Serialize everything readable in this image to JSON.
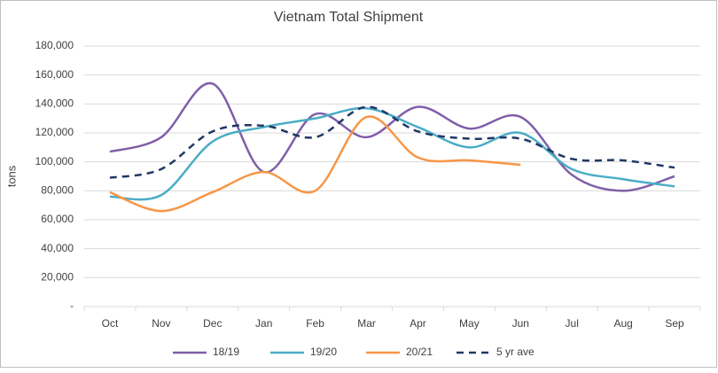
{
  "chart_data": {
    "type": "line",
    "title": "Vietnam Total Shipment",
    "ylabel": "tons",
    "categories": [
      "Oct",
      "Nov",
      "Dec",
      "Jan",
      "Feb",
      "Mar",
      "Apr",
      "May",
      "Jun",
      "Jul",
      "Aug",
      "Sep"
    ],
    "series": [
      {
        "name": "18/19",
        "color": "#7f5fa8",
        "values": [
          107000,
          117000,
          154000,
          93000,
          133000,
          117000,
          138000,
          123000,
          131000,
          91000,
          80000,
          90000
        ]
      },
      {
        "name": "19/20",
        "color": "#4bacc6",
        "values": [
          76000,
          77000,
          114000,
          124000,
          130000,
          137000,
          124000,
          110000,
          120000,
          95000,
          88000,
          83000
        ]
      },
      {
        "name": "20/21",
        "color": "#f79646",
        "values": [
          79000,
          66000,
          79000,
          93000,
          80000,
          131000,
          103000,
          101000,
          98000,
          null,
          null,
          null
        ]
      },
      {
        "name": "5 yr ave",
        "color": "#1f3864",
        "dash": true,
        "values": [
          89000,
          95000,
          121000,
          125000,
          117000,
          138000,
          121000,
          116000,
          116000,
          102000,
          101000,
          96000
        ]
      }
    ],
    "ylim": [
      0,
      180000
    ],
    "yticks": [
      {
        "value": 0,
        "label": "-"
      },
      {
        "value": 20000,
        "label": "20,000"
      },
      {
        "value": 40000,
        "label": "40,000"
      },
      {
        "value": 60000,
        "label": "60,000"
      },
      {
        "value": 80000,
        "label": "80,000"
      },
      {
        "value": 100000,
        "label": "100,000"
      },
      {
        "value": 120000,
        "label": "120,000"
      },
      {
        "value": 140000,
        "label": "140,000"
      },
      {
        "value": 160000,
        "label": "160,000"
      },
      {
        "value": 180000,
        "label": "180,000"
      }
    ],
    "grid": true,
    "legend": "bottom"
  }
}
